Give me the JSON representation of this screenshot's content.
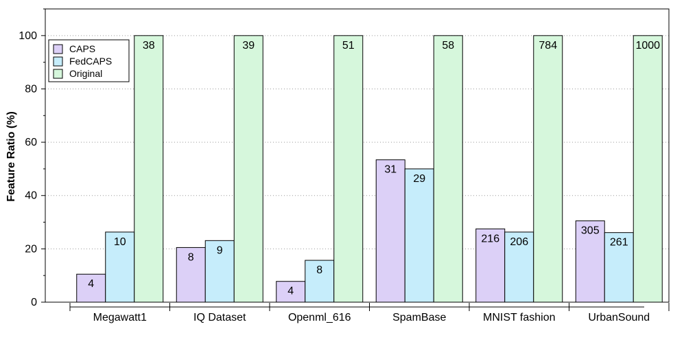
{
  "chart_data": {
    "type": "bar",
    "title": "",
    "xlabel": "",
    "ylabel": "Feature Ratio (%)",
    "ylim": [
      0,
      110
    ],
    "yticks": [
      0,
      20,
      40,
      60,
      80,
      100
    ],
    "grid": "horizontal dotted",
    "legend_position": "top-left",
    "categories": [
      "Megawatt1",
      "IQ Dataset",
      "Openml_616",
      "SpamBase",
      "MNIST fashion",
      "UrbanSound"
    ],
    "series": [
      {
        "name": "CAPS",
        "color": "#dcd0f7",
        "values": [
          10.5,
          20.5,
          7.8,
          53.4,
          27.5,
          30.5
        ],
        "labels": [
          "4",
          "8",
          "4",
          "31",
          "216",
          "305"
        ]
      },
      {
        "name": "FedCAPS",
        "color": "#c6edfb",
        "values": [
          26.3,
          23.1,
          15.7,
          50.0,
          26.3,
          26.1
        ],
        "labels": [
          "10",
          "9",
          "8",
          "29",
          "206",
          "261"
        ]
      },
      {
        "name": "Original",
        "color": "#d6f7dc",
        "values": [
          100,
          100,
          100,
          100,
          100,
          100
        ],
        "labels": [
          "38",
          "39",
          "51",
          "58",
          "784",
          "1000"
        ]
      }
    ]
  }
}
